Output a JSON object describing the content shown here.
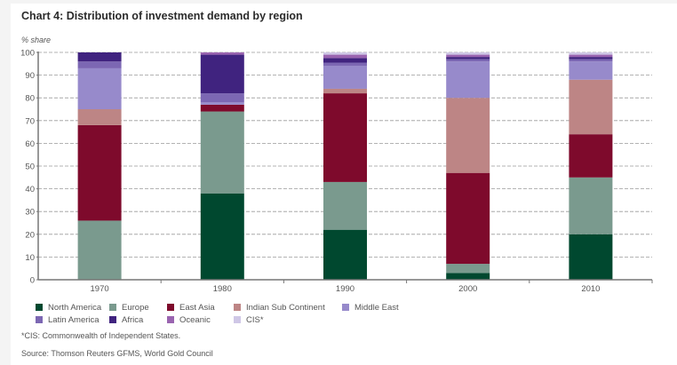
{
  "chart_data": {
    "type": "bar",
    "stacked": true,
    "title": "Chart 4: Distribution of investment demand by region",
    "xlabel": "",
    "ylabel": "% share",
    "ylim": [
      0,
      100
    ],
    "yticks": [
      0,
      10,
      20,
      30,
      40,
      50,
      60,
      70,
      80,
      90,
      100
    ],
    "grid": true,
    "legend_position": "bottom",
    "categories": [
      "1970",
      "1980",
      "1990",
      "2000",
      "2010"
    ],
    "series": [
      {
        "name": "North America",
        "color": "#00482f",
        "values": [
          0,
          38,
          22,
          3,
          20
        ]
      },
      {
        "name": "Europe",
        "color": "#7a9a8e",
        "values": [
          26,
          36,
          21,
          4,
          25
        ]
      },
      {
        "name": "East Asia",
        "color": "#7e0a2c",
        "values": [
          42,
          3,
          39,
          40,
          19
        ]
      },
      {
        "name": "Indian Sub Continent",
        "color": "#bd8585",
        "values": [
          7,
          0,
          2,
          33,
          24
        ]
      },
      {
        "name": "Middle East",
        "color": "#978acb",
        "values": [
          18,
          1,
          10,
          16,
          8
        ]
      },
      {
        "name": "Latin America",
        "color": "#7c67b3",
        "values": [
          3,
          4,
          1.5,
          1,
          1
        ]
      },
      {
        "name": "Africa",
        "color": "#40237f",
        "values": [
          4,
          17,
          2,
          1,
          1
        ]
      },
      {
        "name": "Oceanic",
        "color": "#9a64b0",
        "values": [
          0,
          1,
          1.5,
          1,
          1
        ]
      },
      {
        "name": "CIS*",
        "color": "#cfc7e6",
        "values": [
          0,
          0,
          1,
          1,
          1
        ]
      }
    ]
  },
  "legend_order": [
    0,
    1,
    2,
    3,
    4,
    5,
    6,
    7,
    8
  ],
  "footnote": "*CIS: Commonwealth of Independent States.",
  "source": "Source: Thomson Reuters GFMS, World Gold Council"
}
